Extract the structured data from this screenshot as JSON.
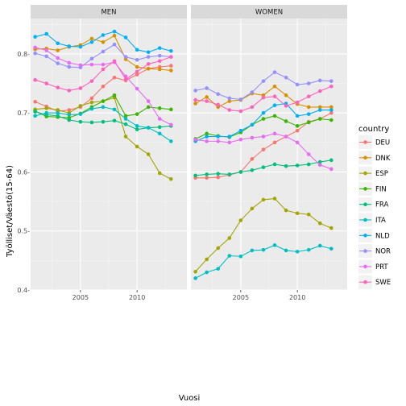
{
  "chart_data": {
    "type": "line",
    "xlabel": "Vuosi",
    "ylabel": "Työlliset/Väestö(15-64)",
    "xlim": [
      2000.6,
      2014.4
    ],
    "ylim": [
      0.4,
      0.86
    ],
    "x_ticks": [
      2005,
      2010
    ],
    "y_ticks": [
      0.4,
      0.5,
      0.6,
      0.7,
      0.8
    ],
    "x_tick_labels": [
      "2005",
      "2010"
    ],
    "y_tick_labels": [
      "0.4-",
      "0.5-",
      "0.6-",
      "0.7-",
      "0.8-"
    ],
    "legend_title": "country",
    "legend_position": "right",
    "grid": true,
    "panels": [
      "MEN",
      "WOMEN"
    ],
    "x": [
      2001,
      2002,
      2003,
      2004,
      2005,
      2006,
      2007,
      2008,
      2009,
      2010,
      2011,
      2012,
      2013
    ],
    "series": [
      {
        "name": "DEU",
        "color": "#F8766D",
        "MEN": [
          0.719,
          0.711,
          0.703,
          0.705,
          0.71,
          0.725,
          0.745,
          0.76,
          0.755,
          0.765,
          0.775,
          0.778,
          0.78
        ],
        "WOMEN": [
          0.59,
          0.59,
          0.591,
          0.595,
          0.6,
          0.622,
          0.638,
          0.65,
          0.66,
          0.67,
          0.685,
          0.69,
          0.7
        ]
      },
      {
        "name": "DNK",
        "color": "#D89000",
        "MEN": [
          0.808,
          0.809,
          0.806,
          0.812,
          0.815,
          0.826,
          0.82,
          0.831,
          0.791,
          0.778,
          0.775,
          0.774,
          0.772
        ],
        "WOMEN": [
          0.716,
          0.727,
          0.71,
          0.72,
          0.722,
          0.733,
          0.73,
          0.745,
          0.73,
          0.715,
          0.71,
          0.71,
          0.71
        ]
      },
      {
        "name": "ESP",
        "color": "#A3A500",
        "MEN": [
          0.706,
          0.708,
          0.705,
          0.7,
          0.712,
          0.718,
          0.72,
          0.726,
          0.66,
          0.643,
          0.63,
          0.598,
          0.588
        ],
        "WOMEN": [
          0.431,
          0.452,
          0.471,
          0.488,
          0.518,
          0.538,
          0.553,
          0.555,
          0.535,
          0.53,
          0.528,
          0.513,
          0.505
        ]
      },
      {
        "name": "FIN",
        "color": "#39B600",
        "MEN": [
          0.703,
          0.694,
          0.693,
          0.692,
          0.699,
          0.71,
          0.72,
          0.73,
          0.695,
          0.698,
          0.71,
          0.708,
          0.706
        ],
        "WOMEN": [
          0.656,
          0.665,
          0.661,
          0.659,
          0.667,
          0.68,
          0.69,
          0.695,
          0.686,
          0.678,
          0.684,
          0.69,
          0.688
        ]
      },
      {
        "name": "FRA",
        "color": "#00BF7D",
        "MEN": [
          0.702,
          0.697,
          0.695,
          0.688,
          0.685,
          0.684,
          0.685,
          0.687,
          0.681,
          0.672,
          0.675,
          0.676,
          0.678
        ],
        "WOMEN": [
          0.594,
          0.596,
          0.597,
          0.596,
          0.6,
          0.603,
          0.608,
          0.613,
          0.61,
          0.611,
          0.613,
          0.617,
          0.62
        ]
      },
      {
        "name": "ITA",
        "color": "#00BFC4",
        "MEN": [
          0.695,
          0.7,
          0.7,
          0.697,
          0.698,
          0.707,
          0.71,
          0.706,
          0.69,
          0.678,
          0.675,
          0.665,
          0.652
        ],
        "WOMEN": [
          0.42,
          0.43,
          0.436,
          0.458,
          0.457,
          0.467,
          0.468,
          0.476,
          0.467,
          0.465,
          0.468,
          0.475,
          0.47
        ]
      },
      {
        "name": "NLD",
        "color": "#00B0F6",
        "MEN": [
          0.829,
          0.834,
          0.818,
          0.813,
          0.812,
          0.82,
          0.832,
          0.838,
          0.828,
          0.807,
          0.803,
          0.81,
          0.805
        ],
        "WOMEN": [
          0.652,
          0.66,
          0.66,
          0.66,
          0.67,
          0.68,
          0.7,
          0.713,
          0.716,
          0.695,
          0.698,
          0.705,
          0.705
        ]
      },
      {
        "name": "NOR",
        "color": "#9590FF",
        "MEN": [
          0.801,
          0.796,
          0.784,
          0.778,
          0.777,
          0.792,
          0.804,
          0.816,
          0.795,
          0.79,
          0.795,
          0.797,
          0.795
        ],
        "WOMEN": [
          0.738,
          0.742,
          0.732,
          0.725,
          0.723,
          0.735,
          0.754,
          0.769,
          0.76,
          0.748,
          0.75,
          0.755,
          0.754
        ]
      },
      {
        "name": "PRT",
        "color": "#E76BF3",
        "MEN": [
          0.811,
          0.806,
          0.793,
          0.785,
          0.781,
          0.782,
          0.782,
          0.786,
          0.762,
          0.741,
          0.72,
          0.69,
          0.68
        ],
        "WOMEN": [
          0.655,
          0.652,
          0.652,
          0.65,
          0.655,
          0.658,
          0.66,
          0.665,
          0.66,
          0.65,
          0.63,
          0.612,
          0.605
        ]
      },
      {
        "name": "SWE",
        "color": "#FF62BC",
        "MEN": [
          0.756,
          0.75,
          0.743,
          0.738,
          0.742,
          0.754,
          0.774,
          0.788,
          0.757,
          0.77,
          0.783,
          0.788,
          0.795
        ],
        "WOMEN": [
          0.722,
          0.72,
          0.714,
          0.705,
          0.703,
          0.71,
          0.726,
          0.728,
          0.712,
          0.718,
          0.728,
          0.737,
          0.745
        ]
      }
    ]
  }
}
